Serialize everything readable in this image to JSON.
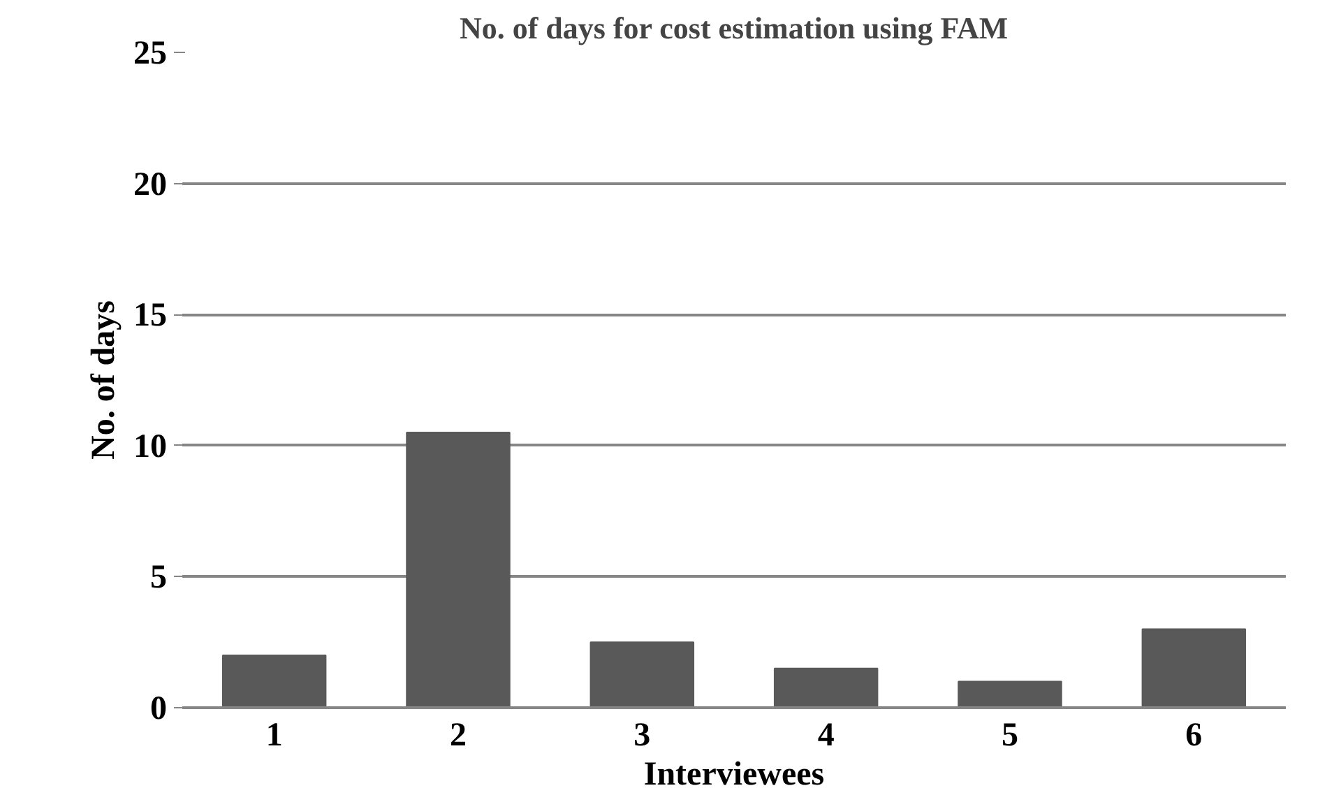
{
  "chart_data": {
    "type": "bar",
    "title": "No. of days for cost estimation using FAM",
    "xlabel": "Interviewees",
    "ylabel": "No. of days",
    "categories": [
      "1",
      "2",
      "3",
      "4",
      "5",
      "6"
    ],
    "values": [
      2,
      10.5,
      2.5,
      1.5,
      1,
      3
    ],
    "color": "#595959",
    "ylim": [
      0,
      25
    ],
    "yticks": [
      0,
      5,
      10,
      15,
      20,
      25
    ],
    "grid": "y"
  }
}
